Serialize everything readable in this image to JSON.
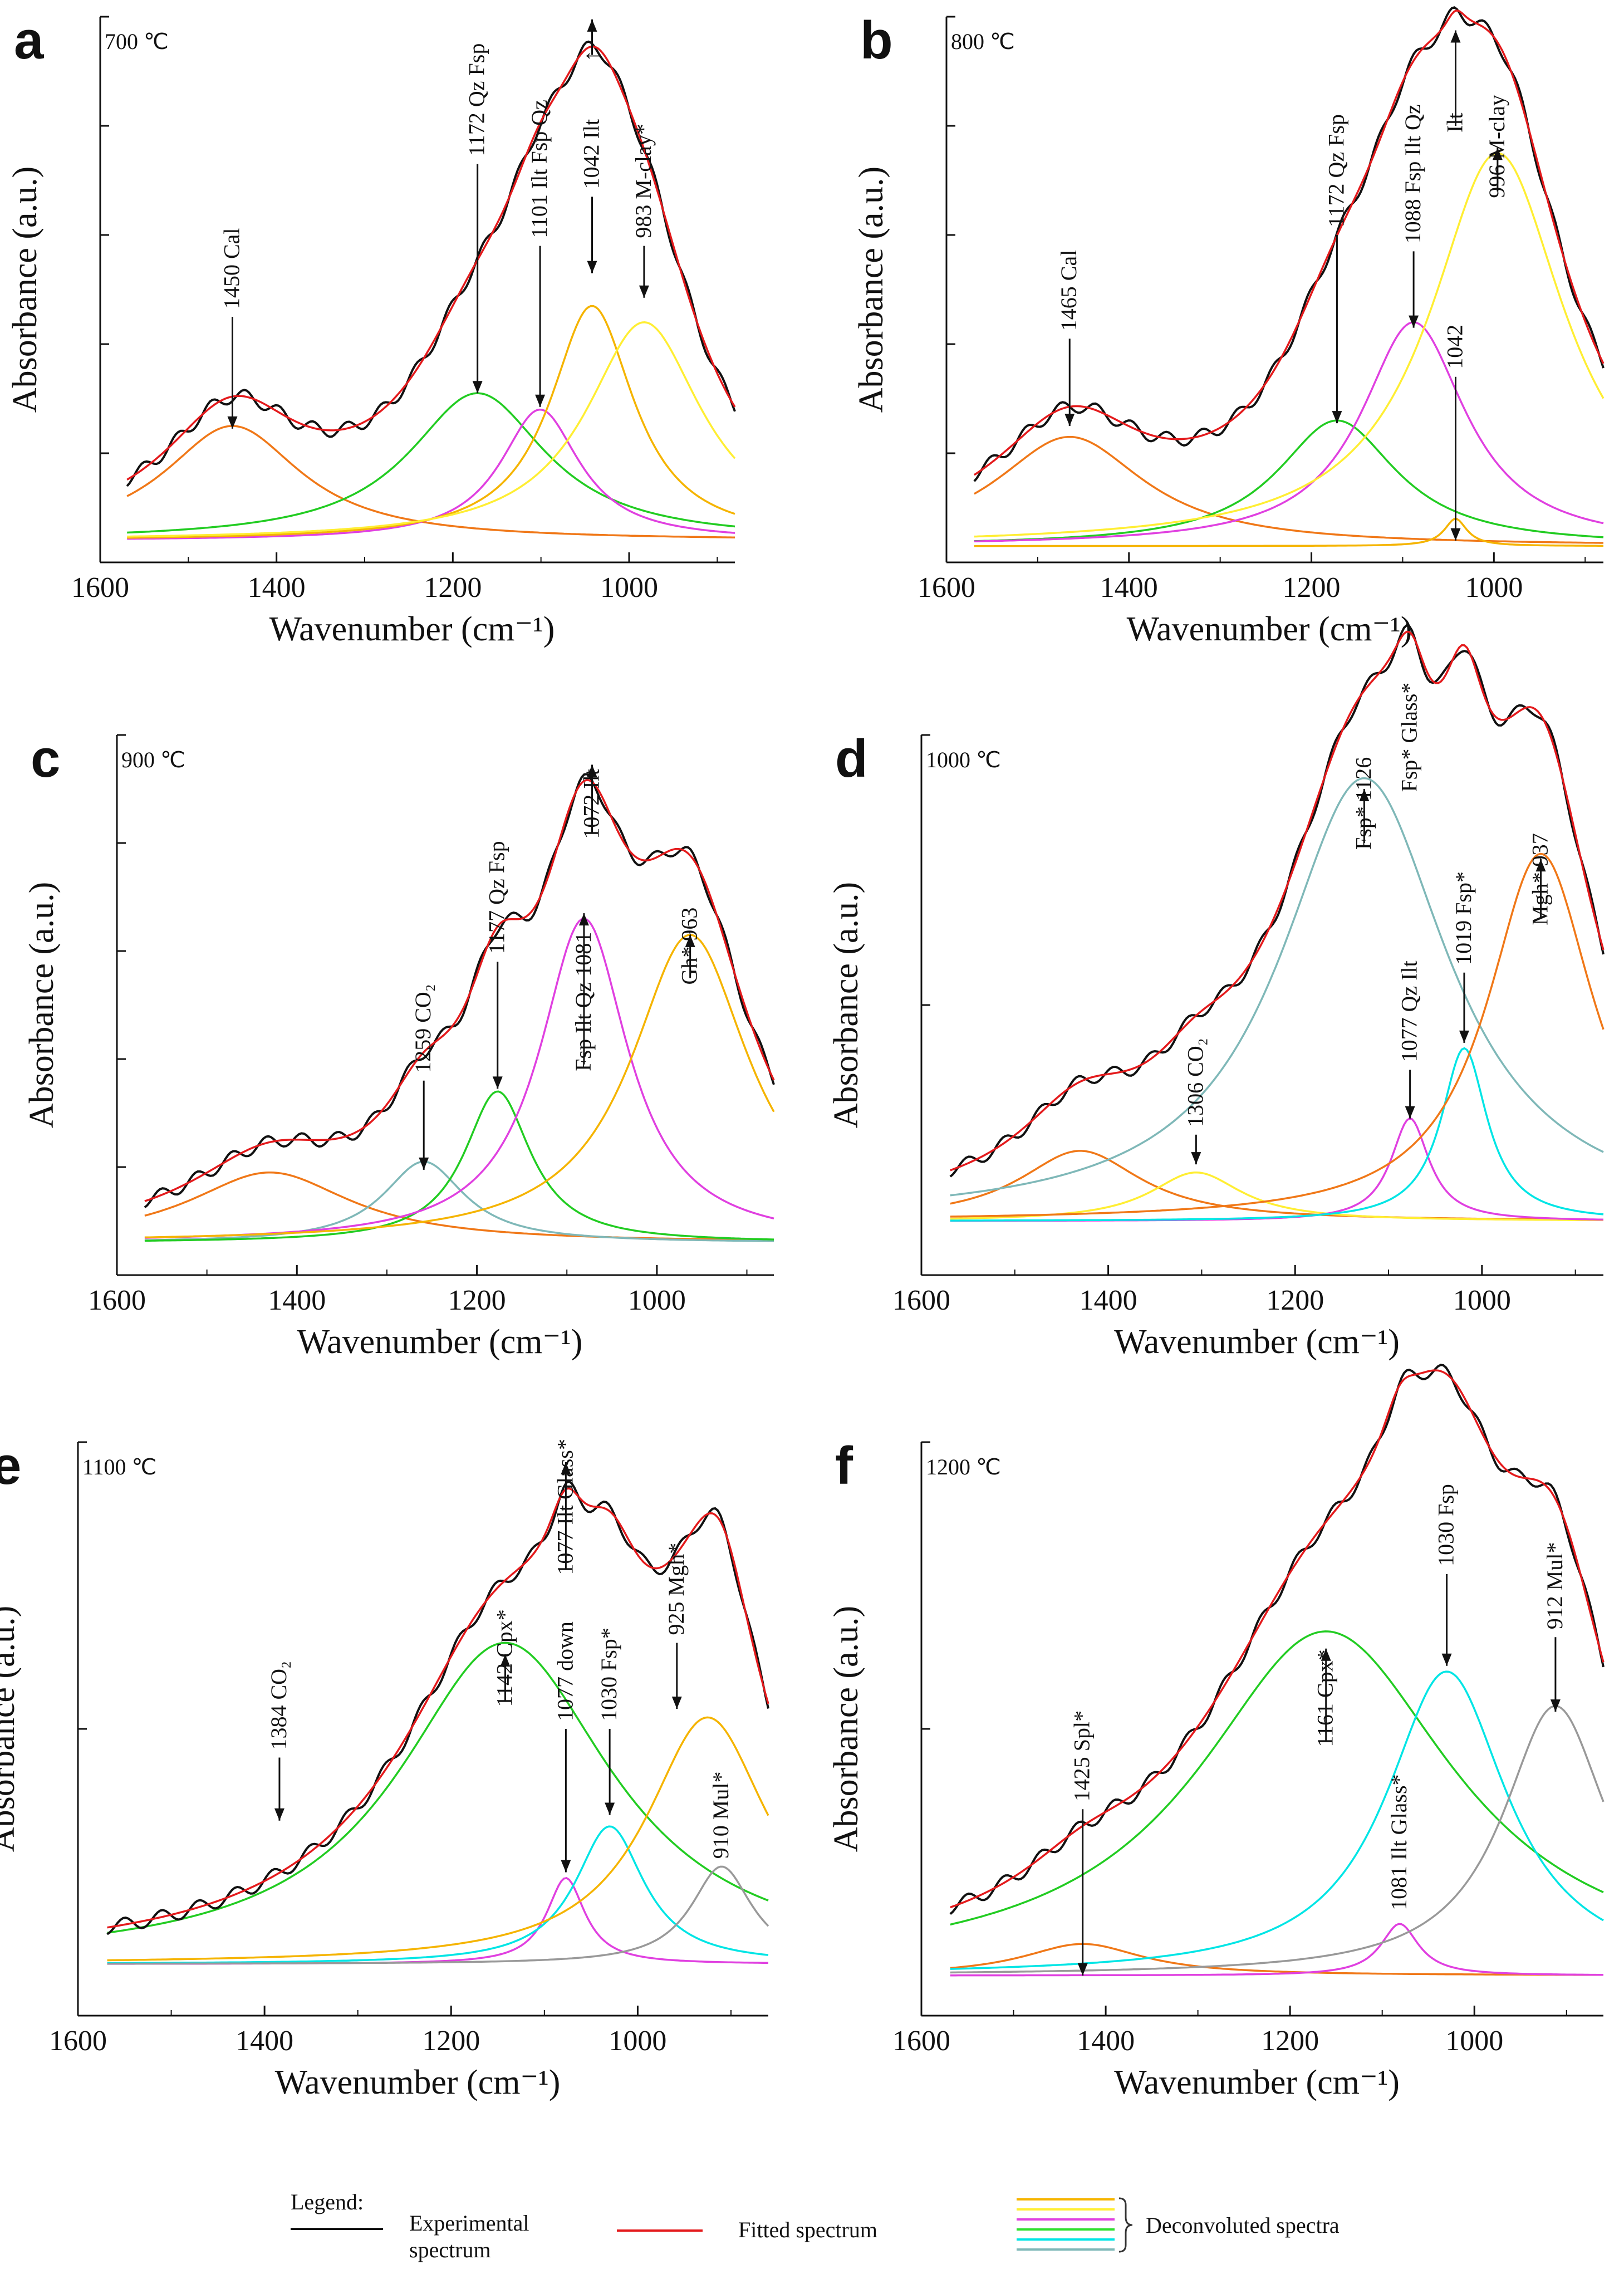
{
  "figure": {
    "legend": {
      "title": "Legend:",
      "experimental": [
        "Experimental",
        "spectrum"
      ],
      "fitted": "Fitted spectrum",
      "deconvoluted": "Deconvoluted  spectra",
      "colors": {
        "experimental": "#111111",
        "fitted": "#e41a1c",
        "deconvoluted": [
          "#f5b400",
          "#ffee33",
          "#e040e0",
          "#2ee02e",
          "#00e5e5",
          "#7fb8b8"
        ]
      }
    }
  },
  "chart_data": [
    {
      "panel": "a",
      "type": "line",
      "temperature": "700 ℃",
      "xlabel": "Wavenumber (cm⁻¹)",
      "ylabel": "Absorbance (a.u.)",
      "xlim": [
        1600,
        880
      ],
      "ylim": [
        0,
        1.0
      ],
      "xticks": [
        1600,
        1400,
        1200,
        1000
      ],
      "yticks": [
        0.2,
        0.4,
        0.6,
        0.8,
        1.0
      ],
      "baseline": 0.04,
      "components": [
        {
          "center": 1450,
          "height": 0.21,
          "width": 95,
          "color": "#f07818"
        },
        {
          "center": 1172,
          "height": 0.27,
          "width": 95,
          "color": "#22cc22"
        },
        {
          "center": 1101,
          "height": 0.24,
          "width": 55,
          "color": "#e040e0"
        },
        {
          "center": 1042,
          "height": 0.43,
          "width": 58,
          "color": "#f5b400"
        },
        {
          "center": 983,
          "height": 0.4,
          "width": 80,
          "color": "#ffee33"
        }
      ],
      "annotations": [
        {
          "text": "1450  Cal",
          "x": 1450,
          "tip": 0.245,
          "dir": "down",
          "tail": 0.45
        },
        {
          "text": "1172  Qz  Fsp",
          "x": 1172,
          "tip": 0.31,
          "dir": "down",
          "tail": 0.73
        },
        {
          "text": "1101  Ilt Fsp Qz",
          "x": 1101,
          "tip": 0.285,
          "dir": "down",
          "tail": 0.58
        },
        {
          "text": "1042  Ilt",
          "x": 1042,
          "tip": 0.53,
          "dir": "down",
          "tail": 0.67
        },
        {
          "text": "↑",
          "x": 1042,
          "tip": 0.995,
          "dir": "up",
          "tail": 0.93
        },
        {
          "text": "983 M-clay*",
          "x": 983,
          "tip": 0.485,
          "dir": "down",
          "tail": 0.58
        }
      ]
    },
    {
      "panel": "b",
      "type": "line",
      "temperature": "800 ℃",
      "xlabel": "Wavenumber (cm⁻¹)",
      "ylabel": "Absorbance (a.u.)",
      "xlim": [
        1600,
        880
      ],
      "ylim": [
        0,
        1.0
      ],
      "xticks": [
        1600,
        1400,
        1200,
        1000
      ],
      "yticks": [
        0.2,
        0.4,
        0.6,
        0.8,
        1.0
      ],
      "baseline": 0.03,
      "components": [
        {
          "center": 1465,
          "height": 0.2,
          "width": 100,
          "color": "#f07818"
        },
        {
          "center": 1172,
          "height": 0.23,
          "width": 80,
          "color": "#22cc22"
        },
        {
          "center": 1088,
          "height": 0.41,
          "width": 70,
          "color": "#e040e0"
        },
        {
          "center": 1042,
          "height": 0.05,
          "width": 15,
          "color": "#f5b400"
        },
        {
          "center": 996,
          "height": 0.72,
          "width": 90,
          "color": "#ffee33"
        }
      ],
      "annotations": [
        {
          "text": "1465  Cal",
          "x": 1465,
          "tip": 0.25,
          "dir": "down",
          "tail": 0.41
        },
        {
          "text": "1172  Qz  Fsp",
          "x": 1172,
          "tip": 0.255,
          "dir": "down",
          "tail": 0.6
        },
        {
          "text": "1088  Fsp Ilt Qz",
          "x": 1088,
          "tip": 0.43,
          "dir": "down",
          "tail": 0.57
        },
        {
          "text": "1042",
          "x": 1042,
          "tip": 0.04,
          "dir": "down",
          "tail": 0.34
        },
        {
          "text": "Ilt",
          "x": 1042,
          "tip": 0.975,
          "dir": "up",
          "tail": 0.8
        },
        {
          "text": "996   M-clay",
          "x": 996,
          "tip": 0.76,
          "dir": "up",
          "tail": 0.68
        }
      ]
    },
    {
      "panel": "c",
      "type": "line",
      "temperature": "900 ℃",
      "xlabel": "Wavenumber (cm⁻¹)",
      "ylabel": "Absorbance (a.u.)",
      "xlim": [
        1600,
        870
      ],
      "ylim": [
        0,
        1.0
      ],
      "xticks": [
        1600,
        1400,
        1200,
        1000
      ],
      "yticks": [
        0.2,
        0.4,
        0.6,
        0.8,
        1.0
      ],
      "baseline": 0.06,
      "components": [
        {
          "center": 1430,
          "height": 0.13,
          "width": 110,
          "color": "#f07818"
        },
        {
          "center": 1259,
          "height": 0.15,
          "width": 55,
          "color": "#7fb8b8"
        },
        {
          "center": 1177,
          "height": 0.28,
          "width": 45,
          "color": "#22cc22"
        },
        {
          "center": 1081,
          "height": 0.6,
          "width": 60,
          "color": "#e040e0"
        },
        {
          "center": 963,
          "height": 0.57,
          "width": 80,
          "color": "#f5b400"
        }
      ],
      "annotations": [
        {
          "text": "1259  CO₂",
          "x": 1259,
          "tip": 0.195,
          "dir": "down",
          "tail": 0.36
        },
        {
          "text": "1177  Qz  Fsp",
          "x": 1177,
          "tip": 0.345,
          "dir": "down",
          "tail": 0.58
        },
        {
          "text": "Fsp Ilt Qz 1081",
          "x": 1081,
          "tip": 0.67,
          "dir": "up",
          "tail": 0.39
        },
        {
          "text": "1072   Ilt",
          "x": 1072,
          "tip": 0.945,
          "dir": "up",
          "tail": 0.82
        },
        {
          "text": "Gh*  963",
          "x": 963,
          "tip": 0.63,
          "dir": "up",
          "tail": 0.55
        }
      ]
    },
    {
      "panel": "d",
      "type": "line",
      "temperature": "1000 ℃",
      "xlabel": "Wavenumber (cm⁻¹)",
      "ylabel": "Absorbance (a.u.)",
      "xlim": [
        1600,
        870
      ],
      "ylim": [
        0,
        1.0
      ],
      "xticks": [
        1600,
        1400,
        1200,
        1000
      ],
      "yticks": [
        0.5,
        1.0
      ],
      "baseline": 0.1,
      "components": [
        {
          "center": 1430,
          "height": 0.13,
          "width": 80,
          "color": "#f07818"
        },
        {
          "center": 1306,
          "height": 0.09,
          "width": 60,
          "color": "#ffee33"
        },
        {
          "center": 1126,
          "height": 0.82,
          "width": 110,
          "color": "#7fb8b8"
        },
        {
          "center": 1077,
          "height": 0.19,
          "width": 25,
          "color": "#e040e0"
        },
        {
          "center": 1019,
          "height": 0.32,
          "width": 30,
          "color": "#00e5e5"
        },
        {
          "center": 937,
          "height": 0.68,
          "width": 70,
          "color": "#f07818"
        }
      ],
      "annotations": [
        {
          "text": "1306  CO₂",
          "x": 1306,
          "tip": 0.205,
          "dir": "down",
          "tail": 0.26
        },
        {
          "text": "Fsp*  1126",
          "x": 1126,
          "tip": 0.9,
          "dir": "up",
          "tail": 0.8
        },
        {
          "text": "Fsp* Glass*",
          "x": 1077,
          "tip": 0.88,
          "dir": "none",
          "tail": 0.88
        },
        {
          "text": "1077  Qz Ilt",
          "x": 1077,
          "tip": 0.29,
          "dir": "down",
          "tail": 0.38
        },
        {
          "text": "1019   Fsp*",
          "x": 1019,
          "tip": 0.43,
          "dir": "down",
          "tail": 0.56
        },
        {
          "text": "Mgh* 937",
          "x": 937,
          "tip": 0.77,
          "dir": "up",
          "tail": 0.66
        }
      ]
    },
    {
      "panel": "e",
      "type": "line",
      "temperature": "1100 ℃",
      "xlabel": "Wavenumber (cm⁻¹)",
      "ylabel": "Absorbance (a.u.)",
      "xlim": [
        1600,
        860
      ],
      "ylim": [
        0,
        1.0
      ],
      "xticks": [
        1600,
        1400,
        1200,
        1000
      ],
      "yticks": [
        0.5,
        1.0
      ],
      "baseline": 0.09,
      "components": [
        {
          "center": 1142,
          "height": 0.56,
          "width": 140,
          "color": "#22cc22"
        },
        {
          "center": 1077,
          "height": 0.15,
          "width": 25,
          "color": "#e040e0"
        },
        {
          "center": 1030,
          "height": 0.24,
          "width": 45,
          "color": "#00e5e5"
        },
        {
          "center": 925,
          "height": 0.43,
          "width": 80,
          "color": "#f5b400"
        },
        {
          "center": 910,
          "height": 0.17,
          "width": 40,
          "color": "#999999"
        }
      ],
      "annotations": [
        {
          "text": "1384  CO₂",
          "x": 1384,
          "tip": 0.34,
          "dir": "down",
          "tail": 0.45
        },
        {
          "text": "1142   Cpx*",
          "x": 1142,
          "tip": 0.63,
          "dir": "up",
          "tail": 0.55
        },
        {
          "text": "1077  Ilt   Glass*",
          "x": 1077,
          "tip": 0.965,
          "dir": "up",
          "tail": 0.78
        },
        {
          "text": "1077 down",
          "x": 1077,
          "tip": 0.25,
          "dir": "down",
          "tail": 0.5
        },
        {
          "text": "1030    Fsp*",
          "x": 1030,
          "tip": 0.35,
          "dir": "down",
          "tail": 0.5
        },
        {
          "text": "925   Mgh*",
          "x": 958,
          "tip": 0.535,
          "dir": "down",
          "tail": 0.65
        },
        {
          "text": "910   Mul*",
          "x": 910,
          "tip": 0.26,
          "dir": "none",
          "tail": 0.26
        }
      ]
    },
    {
      "panel": "f",
      "type": "line",
      "temperature": "1200 ℃",
      "xlabel": "Wavenumber (cm⁻¹)",
      "ylabel": "Absorbance (a.u.)",
      "xlim": [
        1600,
        860
      ],
      "ylim": [
        0,
        1.0
      ],
      "xticks": [
        1600,
        1400,
        1200,
        1000
      ],
      "yticks": [
        0.5,
        1.0
      ],
      "baseline": 0.07,
      "components": [
        {
          "center": 1425,
          "height": 0.055,
          "width": 80,
          "color": "#f07818"
        },
        {
          "center": 1161,
          "height": 0.6,
          "width": 170,
          "color": "#22cc22"
        },
        {
          "center": 1081,
          "height": 0.09,
          "width": 25,
          "color": "#e040e0"
        },
        {
          "center": 1030,
          "height": 0.53,
          "width": 80,
          "color": "#00e5e5"
        },
        {
          "center": 912,
          "height": 0.47,
          "width": 70,
          "color": "#999999"
        }
      ],
      "annotations": [
        {
          "text": "1425   Spl*",
          "x": 1425,
          "tip": 0.07,
          "dir": "down",
          "tail": 0.36
        },
        {
          "text": "1161   Cpx*",
          "x": 1161,
          "tip": 0.64,
          "dir": "up",
          "tail": 0.48
        },
        {
          "text": "1081  Ilt  Glass*",
          "x": 1081,
          "tip": 0.17,
          "dir": "none",
          "tail": 0.17
        },
        {
          "text": "1030  Fsp",
          "x": 1030,
          "tip": 0.61,
          "dir": "down",
          "tail": 0.77
        },
        {
          "text": "912   Mul*",
          "x": 912,
          "tip": 0.53,
          "dir": "down",
          "tail": 0.66
        }
      ]
    }
  ]
}
